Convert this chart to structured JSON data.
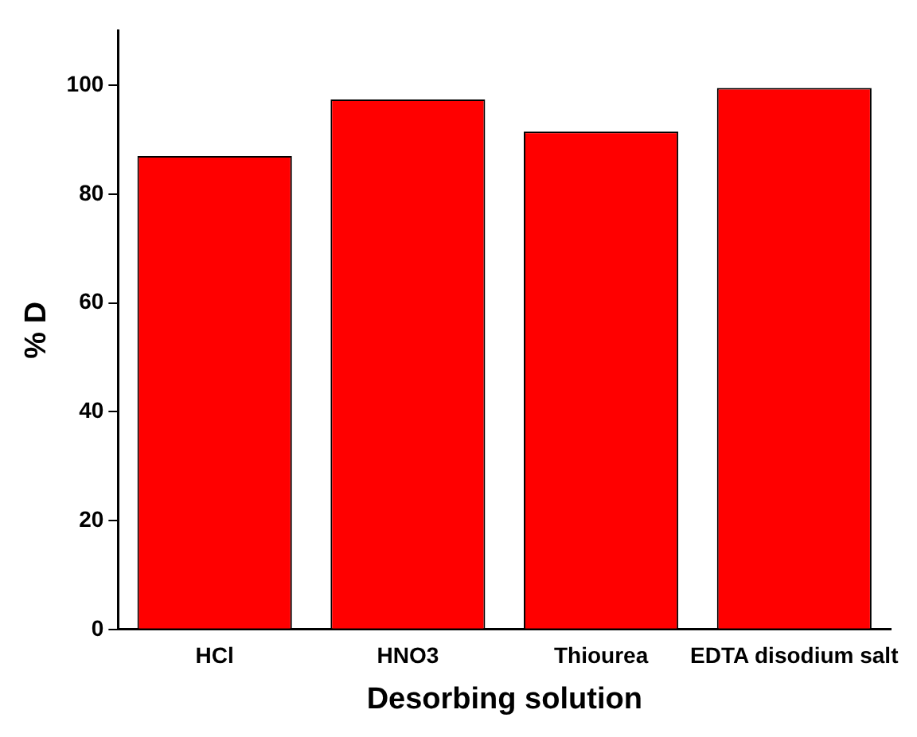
{
  "chart_data": {
    "type": "bar",
    "xlabel": "Desorbing solution",
    "ylabel": "% D",
    "categories": [
      "HCl",
      "HNO3",
      "Thiourea",
      "EDTA disodium salt"
    ],
    "values": [
      87,
      97.4,
      91.5,
      99.5
    ],
    "color": "#ff0000",
    "ylim": [
      0,
      110
    ],
    "yticks": [
      0,
      20,
      40,
      60,
      80,
      100
    ],
    "grid": false,
    "legend": false
  }
}
